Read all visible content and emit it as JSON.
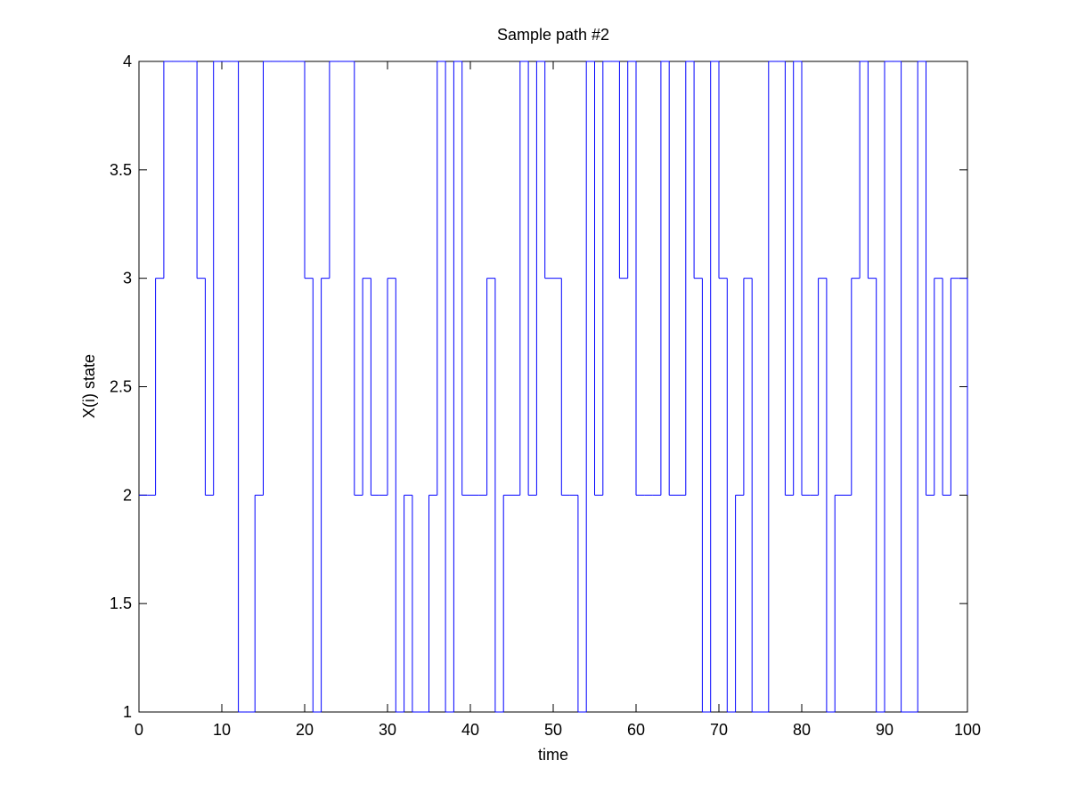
{
  "chart_data": {
    "type": "stairs",
    "title": "Sample path #2",
    "xlabel": "time",
    "ylabel": "X(i) state",
    "color": "#0000ff",
    "x": [
      0,
      1,
      2,
      3,
      4,
      5,
      6,
      7,
      8,
      9,
      10,
      11,
      12,
      13,
      14,
      15,
      16,
      17,
      18,
      19,
      20,
      21,
      22,
      23,
      24,
      25,
      26,
      27,
      28,
      29,
      30,
      31,
      32,
      33,
      34,
      35,
      36,
      37,
      38,
      39,
      40,
      41,
      42,
      43,
      44,
      45,
      46,
      47,
      48,
      49,
      50,
      51,
      52,
      53,
      54,
      55,
      56,
      57,
      58,
      59,
      60,
      61,
      62,
      63,
      64,
      65,
      66,
      67,
      68,
      69,
      70,
      71,
      72,
      73,
      74,
      75,
      76,
      77,
      78,
      79,
      80,
      81,
      82,
      83,
      84,
      85,
      86,
      87,
      88,
      89,
      90,
      91,
      92,
      93,
      94,
      95,
      96,
      97,
      98,
      99,
      100
    ],
    "values": [
      2,
      2,
      3,
      4,
      4,
      4,
      4,
      3,
      2,
      4,
      4,
      4,
      1,
      1,
      2,
      4,
      4,
      4,
      4,
      4,
      3,
      1,
      3,
      4,
      4,
      4,
      2,
      3,
      2,
      2,
      3,
      1,
      2,
      1,
      1,
      2,
      4,
      1,
      4,
      2,
      2,
      2,
      3,
      1,
      2,
      2,
      4,
      2,
      4,
      3,
      3,
      2,
      2,
      1,
      4,
      2,
      4,
      4,
      3,
      4,
      2,
      2,
      2,
      4,
      2,
      2,
      4,
      3,
      1,
      4,
      3,
      1,
      2,
      3,
      1,
      1,
      4,
      4,
      2,
      4,
      2,
      2,
      3,
      1,
      2,
      2,
      3,
      4,
      3,
      1,
      4,
      4,
      1,
      1,
      4,
      2,
      3,
      2,
      3,
      3,
      2
    ],
    "xlim": [
      0,
      100
    ],
    "xticks": [
      0,
      10,
      20,
      30,
      40,
      50,
      60,
      70,
      80,
      90,
      100
    ],
    "ylim": [
      1,
      4
    ],
    "yticks": [
      1,
      1.5,
      2,
      2.5,
      3,
      3.5,
      4
    ]
  }
}
